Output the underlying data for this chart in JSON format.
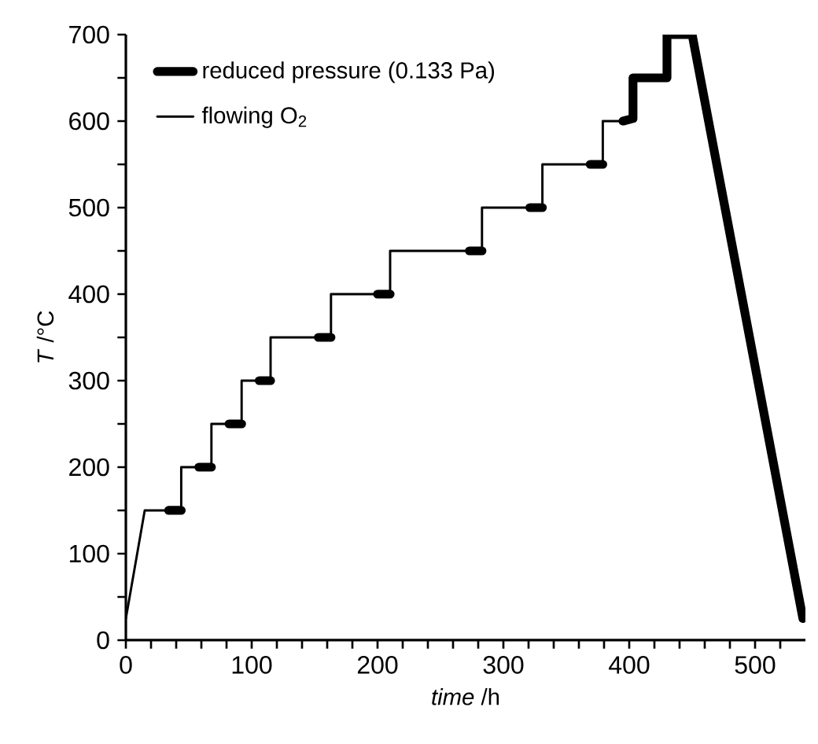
{
  "chart_data": {
    "type": "line",
    "xlabel": "*time* /h",
    "ylabel": "*T* /°C",
    "xlim": [
      0,
      540
    ],
    "ylim": [
      0,
      700
    ],
    "xticks": [
      0,
      {
        "value": 20,
        "label": null
      },
      {
        "value": 40,
        "label": null
      },
      {
        "value": 60,
        "label": null
      },
      {
        "value": 80,
        "label": null
      },
      100,
      {
        "value": 120,
        "label": null
      },
      {
        "value": 140,
        "label": null
      },
      {
        "value": 160,
        "label": null
      },
      {
        "value": 180,
        "label": null
      },
      200,
      {
        "value": 220,
        "label": null
      },
      {
        "value": 240,
        "label": null
      },
      {
        "value": 260,
        "label": null
      },
      {
        "value": 280,
        "label": null
      },
      300,
      {
        "value": 320,
        "label": null
      },
      {
        "value": 340,
        "label": null
      },
      {
        "value": 360,
        "label": null
      },
      {
        "value": 380,
        "label": null
      },
      400,
      {
        "value": 420,
        "label": null
      },
      {
        "value": 440,
        "label": null
      },
      {
        "value": 460,
        "label": null
      },
      {
        "value": 480,
        "label": null
      },
      500,
      {
        "value": 520,
        "label": null
      }
    ],
    "yticks": [
      0,
      {
        "value": 50,
        "label": null
      },
      100,
      {
        "value": 150,
        "label": null
      },
      200,
      {
        "value": 250,
        "label": null
      },
      300,
      {
        "value": 350,
        "label": null
      },
      400,
      {
        "value": 450,
        "label": null
      },
      500,
      {
        "value": 550,
        "label": null
      },
      600,
      {
        "value": 650,
        "label": null
      },
      700
    ],
    "legend": "top left",
    "grid": false,
    "marker": "none",
    "line_style": "solid",
    "series": [
      {
        "name": "reduced pressure (0.133 Pa)",
        "color": "#000000",
        "x": [
          34,
          44,
          null,
          58,
          68,
          null,
          82,
          92,
          null,
          106,
          115,
          null,
          153,
          163,
          null,
          200,
          210,
          null,
          273,
          283,
          null,
          321,
          331,
          null,
          369,
          379,
          null,
          395,
          403,
          403,
          430,
          430,
          450,
          538
        ],
        "values": [
          150,
          150,
          null,
          200,
          200,
          null,
          250,
          250,
          null,
          300,
          300,
          null,
          350,
          350,
          null,
          400,
          400,
          null,
          450,
          450,
          null,
          500,
          500,
          null,
          550,
          550,
          null,
          600,
          603,
          650,
          650,
          700,
          700,
          25
        ]
      },
      {
        "name": "flowing O$_{2}$",
        "color": "#000000",
        "x": [
          0,
          15,
          44,
          44,
          68,
          68,
          92,
          92,
          115,
          115,
          163,
          163,
          210,
          210,
          283,
          283,
          331,
          331,
          379,
          379,
          403
        ],
        "values": [
          25,
          150,
          150,
          200,
          200,
          250,
          250,
          300,
          300,
          350,
          350,
          400,
          400,
          450,
          450,
          500,
          500,
          550,
          550,
          600,
          600
        ]
      }
    ]
  }
}
